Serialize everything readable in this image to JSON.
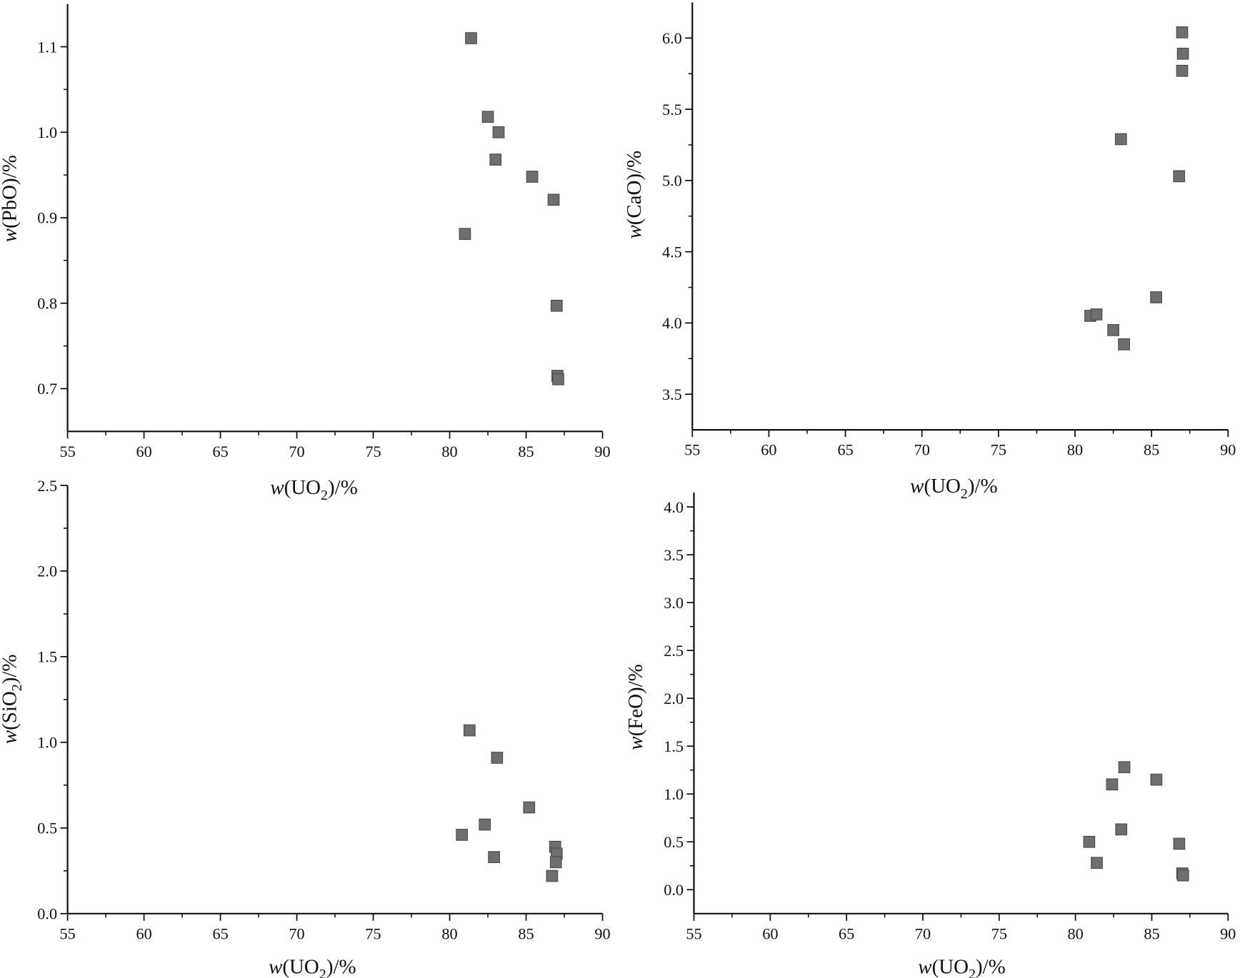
{
  "chart_data": [
    {
      "type": "scatter",
      "panel": "top-left",
      "xlabel": {
        "italic": "w",
        "text": "(UO",
        "sub": "2",
        "suffix": ")/%"
      },
      "ylabel": {
        "italic": "w",
        "text": "(PbO",
        "sub": "",
        "suffix": ")/%"
      },
      "xlim": [
        55,
        90
      ],
      "ylim": [
        0.65,
        1.15
      ],
      "xticks": [
        55,
        60,
        65,
        70,
        75,
        80,
        85,
        90
      ],
      "yticks": [
        0.7,
        0.8,
        0.9,
        1.0,
        1.1
      ],
      "ytick_labels": [
        "0.7",
        "0.8",
        "0.9",
        "1.0",
        "1.1"
      ],
      "points": [
        [
          81.4,
          1.11
        ],
        [
          82.5,
          1.018
        ],
        [
          83.2,
          1.0
        ],
        [
          83.0,
          0.968
        ],
        [
          85.4,
          0.948
        ],
        [
          86.8,
          0.921
        ],
        [
          81.0,
          0.881
        ],
        [
          87.0,
          0.797
        ],
        [
          87.05,
          0.715
        ],
        [
          87.1,
          0.711
        ]
      ]
    },
    {
      "type": "scatter",
      "panel": "top-right",
      "xlabel": {
        "italic": "w",
        "text": "(UO",
        "sub": "2",
        "suffix": ")/%"
      },
      "ylabel": {
        "italic": "w",
        "text": "(CaO",
        "sub": "",
        "suffix": ")/%"
      },
      "xlim": [
        55,
        90
      ],
      "ylim": [
        3.25,
        6.25
      ],
      "xticks": [
        55,
        60,
        65,
        70,
        75,
        80,
        85,
        90
      ],
      "yticks": [
        3.5,
        4.0,
        4.5,
        5.0,
        5.5,
        6.0
      ],
      "ytick_labels": [
        "3.5",
        "4.0",
        "4.5",
        "5.0",
        "5.5",
        "6.0"
      ],
      "points": [
        [
          87.0,
          6.04
        ],
        [
          87.05,
          5.89
        ],
        [
          87.0,
          5.77
        ],
        [
          83.0,
          5.29
        ],
        [
          86.8,
          5.03
        ],
        [
          85.3,
          4.18
        ],
        [
          81.0,
          4.05
        ],
        [
          81.4,
          4.06
        ],
        [
          82.5,
          3.95
        ],
        [
          83.2,
          3.85
        ]
      ]
    },
    {
      "type": "scatter",
      "panel": "bottom-left",
      "xlabel": {
        "italic": "w",
        "text": "(UO",
        "sub": "2",
        "suffix": ")/%"
      },
      "ylabel": {
        "italic": "w",
        "text": "(SiO",
        "sub": "2",
        "suffix": ")/%"
      },
      "xlim": [
        55,
        90
      ],
      "ylim": [
        0.0,
        2.5
      ],
      "xticks": [
        55,
        60,
        65,
        70,
        75,
        80,
        85,
        90
      ],
      "yticks": [
        0.0,
        0.5,
        1.0,
        1.5,
        2.0,
        2.5
      ],
      "ytick_labels": [
        "0.0",
        "0.5",
        "1.0",
        "1.5",
        "2.0",
        "2.5"
      ],
      "points": [
        [
          81.3,
          1.07
        ],
        [
          83.1,
          0.91
        ],
        [
          85.2,
          0.62
        ],
        [
          82.3,
          0.52
        ],
        [
          80.8,
          0.46
        ],
        [
          82.9,
          0.33
        ],
        [
          86.9,
          0.39
        ],
        [
          87.0,
          0.35
        ],
        [
          86.95,
          0.3
        ],
        [
          86.7,
          0.22
        ]
      ]
    },
    {
      "type": "scatter",
      "panel": "bottom-right",
      "xlabel": {
        "italic": "w",
        "text": "(UO",
        "sub": "2",
        "suffix": ")/%"
      },
      "ylabel": {
        "italic": "w",
        "text": "(FeO",
        "sub": "",
        "suffix": ")/%"
      },
      "xlim": [
        55,
        90
      ],
      "ylim": [
        -0.25,
        4.15
      ],
      "xticks": [
        55,
        60,
        65,
        70,
        75,
        80,
        85,
        90
      ],
      "yticks": [
        0.0,
        0.5,
        1.0,
        1.5,
        2.0,
        2.5,
        3.0,
        3.5,
        4.0
      ],
      "ytick_labels": [
        "0.0",
        "0.5",
        "1.0",
        "1.5",
        "2.0",
        "2.5",
        "3.0",
        "3.5",
        "4.0"
      ],
      "points": [
        [
          83.2,
          1.28
        ],
        [
          82.4,
          1.1
        ],
        [
          85.3,
          1.15
        ],
        [
          83.0,
          0.63
        ],
        [
          80.9,
          0.5
        ],
        [
          81.4,
          0.28
        ],
        [
          86.8,
          0.48
        ],
        [
          87.0,
          0.17
        ],
        [
          87.05,
          0.15
        ]
      ]
    }
  ],
  "colors": {
    "marker_fill": "#6e6e6e",
    "marker_edge": "#4a4a4a",
    "axis": "#111111"
  }
}
